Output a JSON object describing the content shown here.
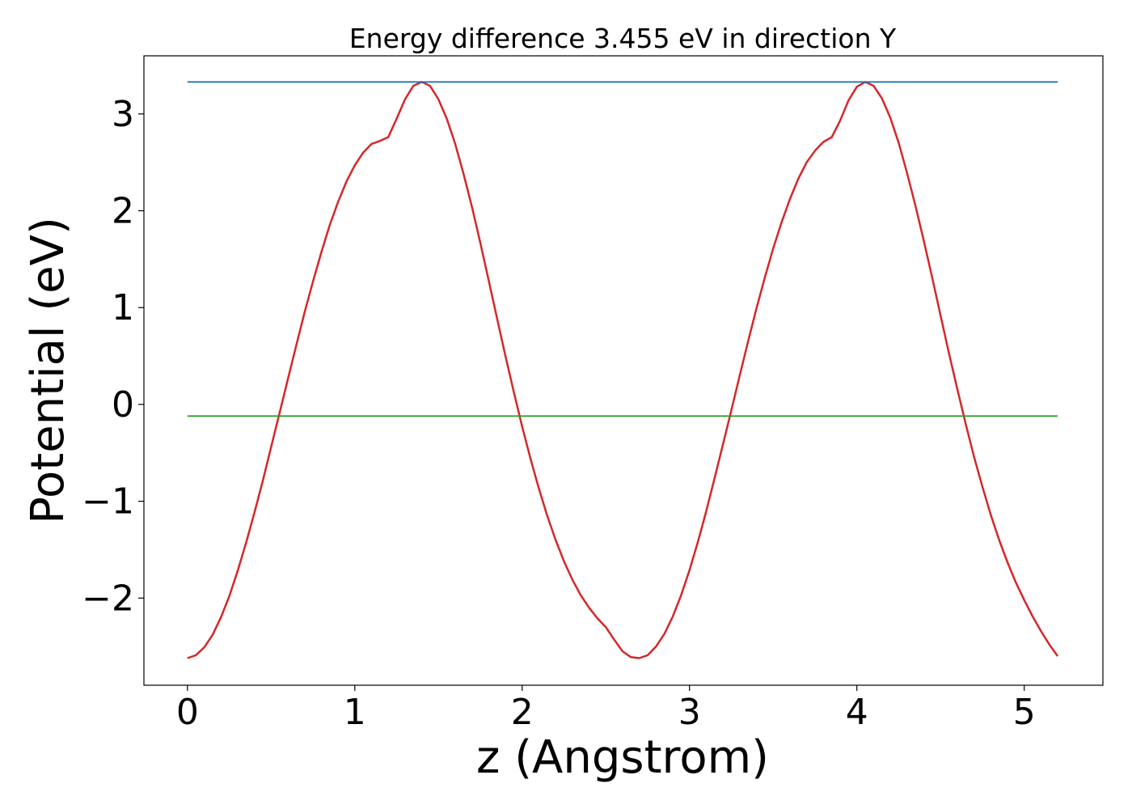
{
  "chart_data": {
    "type": "line",
    "title": "Energy difference 3.455 eV in direction Y",
    "xlabel": "z (Angstrom)",
    "ylabel": "Potential (eV)",
    "xlim": [
      -0.26,
      5.47
    ],
    "ylim": [
      -2.9,
      3.6
    ],
    "xticks": [
      0,
      1,
      2,
      3,
      4,
      5
    ],
    "xtick_labels": [
      "0",
      "1",
      "2",
      "3",
      "4",
      "5"
    ],
    "yticks": [
      -2,
      -1,
      0,
      1,
      2,
      3
    ],
    "ytick_labels": [
      "−2",
      "−1",
      "0",
      "1",
      "2",
      "3"
    ],
    "grid": false,
    "series": [
      {
        "color": "#d62728",
        "x": [
          0.0,
          0.05,
          0.1,
          0.15,
          0.2,
          0.25,
          0.3,
          0.35,
          0.4,
          0.45,
          0.5,
          0.55,
          0.6,
          0.65,
          0.7,
          0.75,
          0.8,
          0.85,
          0.9,
          0.95,
          1.0,
          1.05,
          1.1,
          1.15,
          1.2,
          1.25,
          1.3,
          1.35,
          1.4,
          1.45,
          1.5,
          1.55,
          1.6,
          1.65,
          1.7,
          1.75,
          1.8,
          1.85,
          1.9,
          1.95,
          2.0,
          2.05,
          2.1,
          2.15,
          2.2,
          2.25,
          2.3,
          2.35,
          2.4,
          2.45,
          2.5,
          2.55,
          2.6,
          2.65,
          2.7,
          2.75,
          2.8,
          2.85,
          2.9,
          2.95,
          3.0,
          3.05,
          3.1,
          3.15,
          3.2,
          3.25,
          3.3,
          3.35,
          3.4,
          3.45,
          3.5,
          3.55,
          3.6,
          3.65,
          3.7,
          3.75,
          3.8,
          3.85,
          3.9,
          3.95,
          4.0,
          4.05,
          4.1,
          4.15,
          4.2,
          4.25,
          4.3,
          4.35,
          4.4,
          4.45,
          4.5,
          4.55,
          4.6,
          4.65,
          4.7,
          4.75,
          4.8,
          4.85,
          4.9,
          4.95,
          5.0,
          5.05,
          5.1,
          5.15,
          5.2
        ],
        "y": [
          -2.62,
          -2.59,
          -2.51,
          -2.38,
          -2.2,
          -1.98,
          -1.72,
          -1.43,
          -1.12,
          -0.79,
          -0.44,
          -0.09,
          0.26,
          0.61,
          0.95,
          1.27,
          1.57,
          1.85,
          2.09,
          2.3,
          2.47,
          2.6,
          2.69,
          2.72,
          2.76,
          2.95,
          3.15,
          3.29,
          3.33,
          3.29,
          3.15,
          2.95,
          2.69,
          2.38,
          2.04,
          1.67,
          1.28,
          0.89,
          0.5,
          0.13,
          -0.23,
          -0.56,
          -0.87,
          -1.15,
          -1.4,
          -1.62,
          -1.81,
          -1.97,
          -2.1,
          -2.21,
          -2.3,
          -2.43,
          -2.55,
          -2.61,
          -2.62,
          -2.59,
          -2.5,
          -2.37,
          -2.19,
          -1.97,
          -1.71,
          -1.42,
          -1.1,
          -0.76,
          -0.41,
          -0.06,
          0.3,
          0.65,
          0.99,
          1.31,
          1.61,
          1.88,
          2.12,
          2.33,
          2.5,
          2.62,
          2.71,
          2.76,
          2.93,
          3.14,
          3.28,
          3.33,
          3.29,
          3.16,
          2.96,
          2.7,
          2.39,
          2.05,
          1.69,
          1.31,
          0.92,
          0.53,
          0.16,
          -0.2,
          -0.54,
          -0.85,
          -1.14,
          -1.4,
          -1.63,
          -1.84,
          -2.02,
          -2.19,
          -2.34,
          -2.48,
          -2.6
        ]
      },
      {
        "color": "#1f77b4",
        "x": [
          0.0,
          5.2
        ],
        "y": [
          3.33,
          3.33
        ]
      },
      {
        "color": "#2ca02c",
        "x": [
          0.0,
          5.2
        ],
        "y": [
          -0.12,
          -0.12
        ]
      }
    ]
  }
}
